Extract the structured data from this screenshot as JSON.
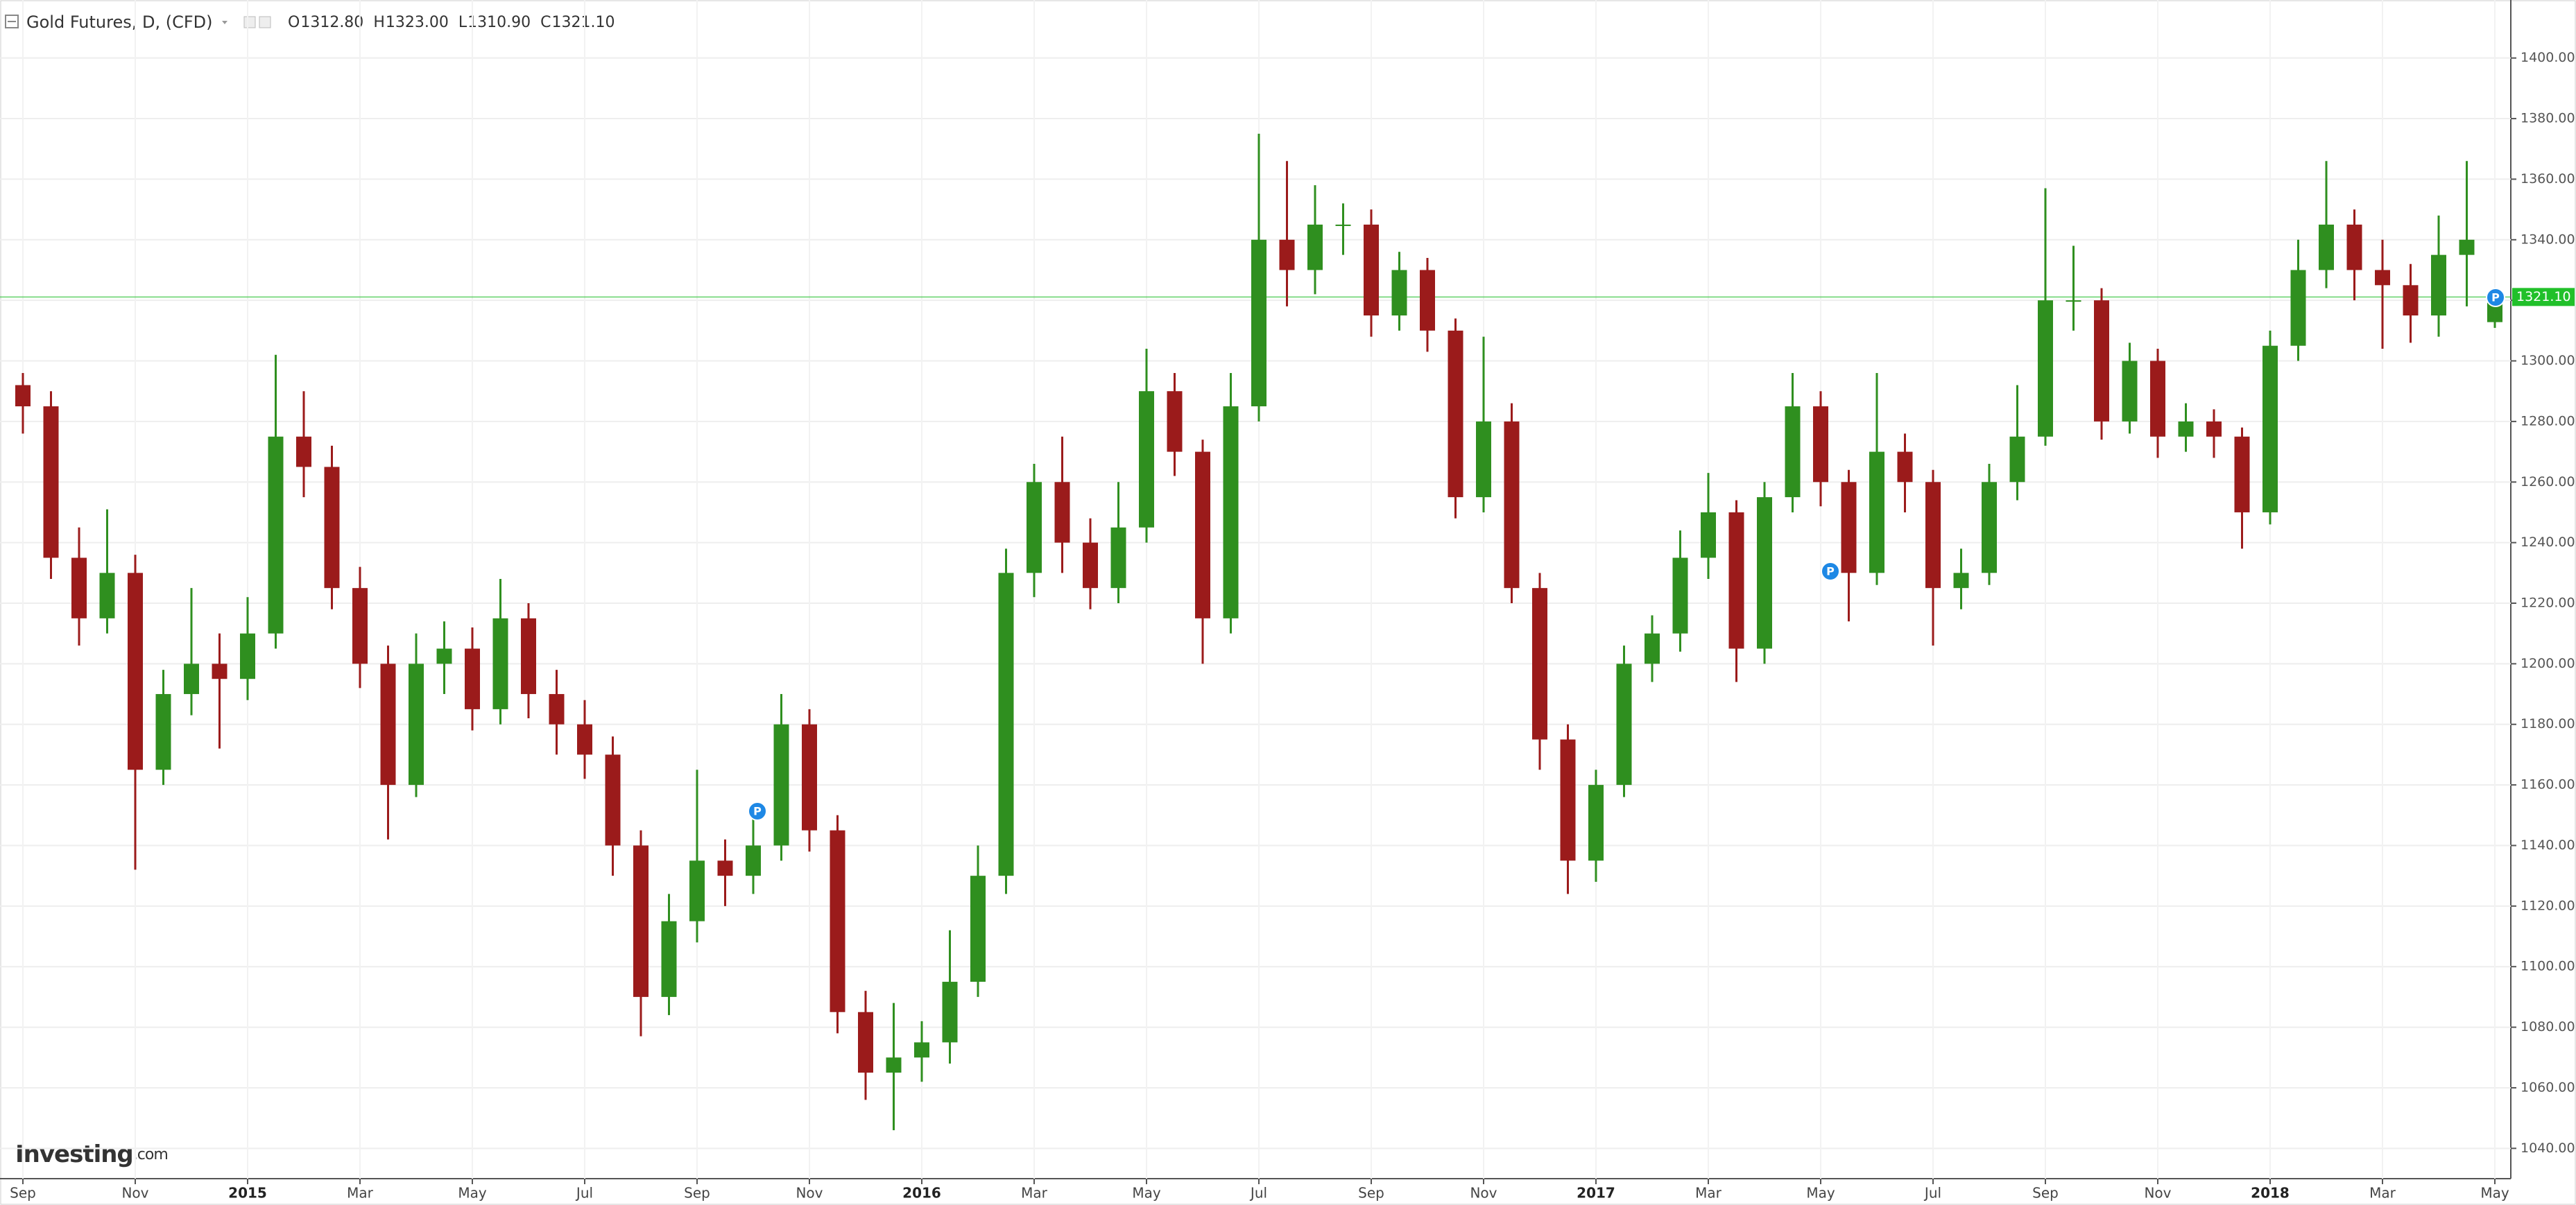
{
  "header": {
    "title": "Gold Futures, D, (CFD)",
    "ohlc": [
      "O",
      "1312.80",
      "H",
      "1323.00",
      "L",
      "1310.90",
      "C",
      "1321.10"
    ]
  },
  "brand": "Investing",
  "brand_suffix": ".com",
  "markers": [
    "P",
    "P",
    "P"
  ],
  "chart_data": {
    "type": "candlestick",
    "categories": [
      "Sep",
      null,
      null,
      null,
      "Nov",
      null,
      null,
      null,
      "2015",
      null,
      null,
      null,
      "Mar",
      null,
      null,
      null,
      "May",
      null,
      null,
      null,
      "Jul",
      null,
      null,
      null,
      "Sep",
      null,
      null,
      null,
      "Nov",
      null,
      null,
      null,
      "2016",
      null,
      null,
      null,
      "Mar",
      null,
      null,
      null,
      "May",
      null,
      null,
      null,
      "Jul",
      null,
      null,
      null,
      "Sep",
      null,
      null,
      null,
      "Nov",
      null,
      null,
      null,
      "2017",
      null,
      null,
      null,
      "Mar",
      null,
      null,
      null,
      "May",
      null,
      null,
      null,
      "Jul",
      null,
      null,
      null,
      "Sep",
      null,
      null,
      null,
      "Nov",
      null,
      null,
      null,
      "2018",
      null,
      null,
      null,
      "Mar",
      null,
      null,
      null,
      "May"
    ],
    "open": [
      1292,
      1285,
      1235,
      1215,
      1230,
      1165,
      1190,
      1200,
      1195,
      1210,
      1275,
      1265,
      1225,
      1200,
      1160,
      1200,
      1205,
      1185,
      1215,
      1190,
      1180,
      1170,
      1140,
      1090,
      1115,
      1135,
      1130,
      1140,
      1180,
      1145,
      1085,
      1065,
      1070,
      1075,
      1095,
      1130,
      1230,
      1260,
      1240,
      1225,
      1245,
      1290,
      1270,
      1215,
      1285,
      1340,
      1330,
      1345,
      1345,
      1315,
      1330,
      1310,
      1255,
      1280,
      1225,
      1175,
      1135,
      1160,
      1200,
      1210,
      1235,
      1250,
      1205,
      1255,
      1285,
      1260,
      1230,
      1270,
      1260,
      1225,
      1230,
      1260,
      1275,
      1320,
      1320,
      1280,
      1300,
      1275,
      1280,
      1275,
      1250,
      1305,
      1330,
      1345,
      1330,
      1325,
      1315,
      1335,
      1312.8
    ],
    "high": [
      1296,
      1290,
      1245,
      1251,
      1236,
      1198,
      1225,
      1210,
      1222,
      1302,
      1290,
      1272,
      1232,
      1206,
      1210,
      1214,
      1212,
      1228,
      1220,
      1198,
      1188,
      1176,
      1145,
      1124,
      1165,
      1142,
      1152,
      1190,
      1185,
      1150,
      1092,
      1088,
      1082,
      1112,
      1140,
      1238,
      1266,
      1275,
      1248,
      1260,
      1304,
      1296,
      1274,
      1296,
      1375,
      1366,
      1358,
      1352,
      1350,
      1336,
      1334,
      1314,
      1308,
      1286,
      1230,
      1180,
      1165,
      1206,
      1216,
      1244,
      1263,
      1254,
      1260,
      1296,
      1290,
      1264,
      1296,
      1276,
      1264,
      1238,
      1266,
      1292,
      1357,
      1338,
      1324,
      1306,
      1304,
      1286,
      1284,
      1278,
      1310,
      1340,
      1366,
      1350,
      1340,
      1332,
      1348,
      1366,
      1323
    ],
    "low": [
      1276,
      1228,
      1206,
      1210,
      1132,
      1160,
      1183,
      1172,
      1188,
      1205,
      1255,
      1218,
      1192,
      1142,
      1156,
      1190,
      1178,
      1180,
      1182,
      1170,
      1162,
      1130,
      1077,
      1084,
      1108,
      1120,
      1124,
      1135,
      1138,
      1078,
      1056,
      1046,
      1062,
      1068,
      1090,
      1124,
      1222,
      1230,
      1218,
      1220,
      1240,
      1262,
      1200,
      1210,
      1280,
      1318,
      1322,
      1335,
      1308,
      1310,
      1303,
      1248,
      1250,
      1220,
      1165,
      1124,
      1128,
      1156,
      1194,
      1204,
      1228,
      1194,
      1200,
      1250,
      1252,
      1214,
      1226,
      1250,
      1206,
      1218,
      1226,
      1254,
      1272,
      1310,
      1274,
      1276,
      1268,
      1270,
      1268,
      1238,
      1246,
      1300,
      1324,
      1320,
      1304,
      1306,
      1308,
      1318,
      1310.9
    ],
    "close": [
      1285,
      1235,
      1215,
      1230,
      1165,
      1190,
      1200,
      1195,
      1210,
      1275,
      1265,
      1225,
      1200,
      1160,
      1200,
      1205,
      1185,
      1215,
      1190,
      1180,
      1170,
      1140,
      1090,
      1115,
      1135,
      1130,
      1140,
      1180,
      1145,
      1085,
      1065,
      1070,
      1075,
      1095,
      1130,
      1230,
      1260,
      1240,
      1225,
      1245,
      1290,
      1270,
      1215,
      1285,
      1340,
      1330,
      1345,
      1345,
      1315,
      1330,
      1310,
      1255,
      1280,
      1225,
      1175,
      1135,
      1160,
      1200,
      1210,
      1235,
      1250,
      1205,
      1255,
      1285,
      1260,
      1230,
      1270,
      1260,
      1225,
      1230,
      1260,
      1275,
      1320,
      1320,
      1280,
      1300,
      1275,
      1280,
      1275,
      1250,
      1305,
      1330,
      1345,
      1330,
      1325,
      1315,
      1335,
      1340,
      1321.1
    ],
    "up_color": "#2f8f1f",
    "down_color": "#9b1b1b",
    "last_price": {
      "value": 1321.1,
      "label": "1321.10"
    },
    "last_price_color": "#21c02a",
    "ylim": [
      1030,
      1410
    ],
    "yticks": [
      {
        "value": 1040,
        "label": "1040.00"
      },
      {
        "value": 1060,
        "label": "1060.00"
      },
      {
        "value": 1080,
        "label": "1080.00"
      },
      {
        "value": 1100,
        "label": "1100.00"
      },
      {
        "value": 1120,
        "label": "1120.00"
      },
      {
        "value": 1140,
        "label": "1140.00"
      },
      {
        "value": 1160,
        "label": "1160.00"
      },
      {
        "value": 1180,
        "label": "1180.00"
      },
      {
        "value": 1200,
        "label": "1200.00"
      },
      {
        "value": 1220,
        "label": "1220.00"
      },
      {
        "value": 1240,
        "label": "1240.00"
      },
      {
        "value": 1260,
        "label": "1260.00"
      },
      {
        "value": 1280,
        "label": "1280.00"
      },
      {
        "value": 1300,
        "label": "1300.00"
      },
      {
        "value": 1320,
        "label": "1320.00"
      },
      {
        "value": 1340,
        "label": "1340.00"
      },
      {
        "value": 1360,
        "label": "1360.00"
      },
      {
        "value": 1380,
        "label": "1380.00"
      },
      {
        "value": 1400,
        "label": "1400.00"
      }
    ],
    "grid": true
  }
}
